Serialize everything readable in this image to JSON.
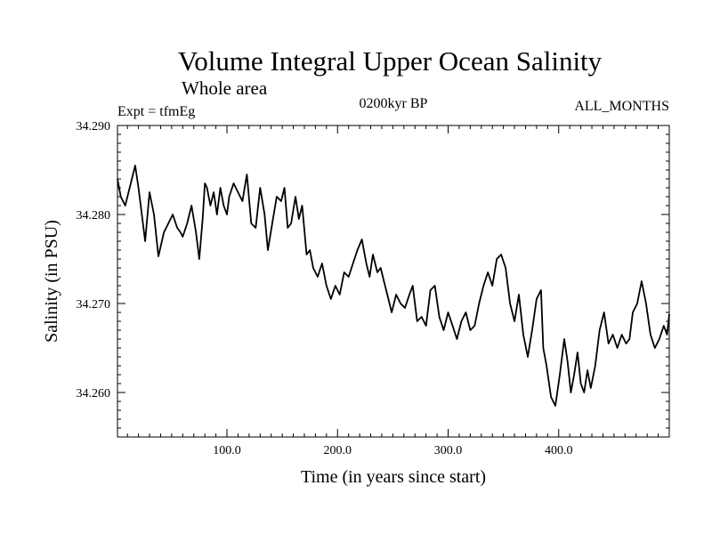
{
  "chart_data": {
    "type": "line",
    "title": "Volume Integral Upper Ocean Salinity",
    "subtitle": "Whole area",
    "experiment": "Expt = tfmEg",
    "period": "0200kyr BP",
    "months": "ALL_MONTHS",
    "xlabel": "Time (in years since start)",
    "ylabel": "Salinity (in PSU)",
    "xlim": [
      1,
      500
    ],
    "ylim": [
      34.255,
      34.29
    ],
    "x_ticks": [
      100,
      200,
      300,
      400
    ],
    "x_tick_labels": [
      "100.0",
      "200.0",
      "300.0",
      "400.0"
    ],
    "y_ticks": [
      34.26,
      34.27,
      34.28,
      34.29
    ],
    "y_tick_labels": [
      "34.260",
      "34.270",
      "34.280",
      "34.290"
    ],
    "grid": false,
    "series": [
      {
        "name": "Salinity",
        "color": "#000000",
        "x": [
          1,
          4,
          8,
          12,
          17,
          20,
          24,
          26,
          30,
          34,
          38,
          43,
          47,
          51,
          55,
          58,
          60,
          64,
          68,
          72,
          75,
          78,
          80,
          82,
          85,
          88,
          91,
          94,
          97,
          100,
          102,
          106,
          110,
          114,
          118,
          122,
          126,
          130,
          134,
          137,
          141,
          145,
          149,
          152,
          155,
          158,
          162,
          165,
          168,
          172,
          175,
          178,
          182,
          186,
          190,
          194,
          198,
          202,
          206,
          210,
          214,
          218,
          222,
          226,
          229,
          232,
          236,
          239,
          242,
          246,
          249,
          253,
          257,
          261,
          265,
          268,
          272,
          276,
          280,
          284,
          288,
          292,
          296,
          300,
          304,
          308,
          312,
          316,
          320,
          324,
          328,
          332,
          336,
          340,
          344,
          348,
          352,
          356,
          360,
          364,
          368,
          372,
          376,
          380,
          384,
          386,
          389,
          393,
          397,
          401,
          405,
          408,
          411,
          414,
          417,
          420,
          423,
          426,
          429,
          433,
          437,
          441,
          445,
          449,
          453,
          457,
          461,
          464,
          467,
          471,
          475,
          479,
          483,
          487,
          491,
          495,
          498,
          500
        ],
        "values": [
          34.284,
          34.282,
          34.281,
          34.283,
          34.2855,
          34.283,
          34.279,
          34.277,
          34.2825,
          34.28,
          34.2753,
          34.278,
          34.279,
          34.28,
          34.2785,
          34.278,
          34.2775,
          34.279,
          34.281,
          34.278,
          34.275,
          34.2795,
          34.2835,
          34.283,
          34.281,
          34.2825,
          34.28,
          34.283,
          34.281,
          34.28,
          34.282,
          34.2835,
          34.2825,
          34.2815,
          34.2845,
          34.279,
          34.2785,
          34.283,
          34.28,
          34.276,
          34.279,
          34.282,
          34.2815,
          34.283,
          34.2785,
          34.279,
          34.282,
          34.2795,
          34.281,
          34.2755,
          34.276,
          34.274,
          34.273,
          34.2745,
          34.272,
          34.2705,
          34.272,
          34.271,
          34.2735,
          34.273,
          34.2745,
          34.276,
          34.2772,
          34.2745,
          34.273,
          34.2755,
          34.2735,
          34.274,
          34.2725,
          34.2705,
          34.269,
          34.271,
          34.27,
          34.2695,
          34.271,
          34.272,
          34.268,
          34.2685,
          34.2675,
          34.2715,
          34.272,
          34.2685,
          34.267,
          34.269,
          34.2675,
          34.266,
          34.268,
          34.269,
          34.267,
          34.2675,
          34.27,
          34.272,
          34.2735,
          34.272,
          34.275,
          34.2755,
          34.274,
          34.27,
          34.268,
          34.271,
          34.2665,
          34.264,
          34.267,
          34.2705,
          34.2715,
          34.265,
          34.263,
          34.2595,
          34.2585,
          34.262,
          34.266,
          34.2635,
          34.26,
          34.262,
          34.2645,
          34.261,
          34.26,
          34.2625,
          34.2605,
          34.263,
          34.267,
          34.269,
          34.2655,
          34.2665,
          34.265,
          34.2665,
          34.2655,
          34.266,
          34.269,
          34.27,
          34.2725,
          34.27,
          34.2665,
          34.265,
          34.266,
          34.2675,
          34.2665,
          34.2688
        ]
      }
    ]
  }
}
